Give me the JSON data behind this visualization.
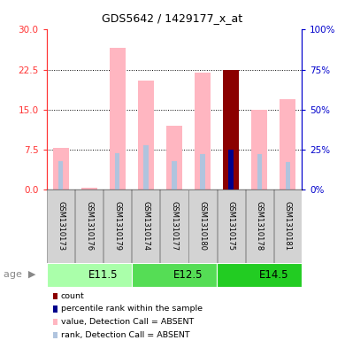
{
  "title": "GDS5642 / 1429177_x_at",
  "samples": [
    "GSM1310173",
    "GSM1310176",
    "GSM1310179",
    "GSM1310174",
    "GSM1310177",
    "GSM1310180",
    "GSM1310175",
    "GSM1310178",
    "GSM1310181"
  ],
  "value_absent": [
    7.8,
    0.4,
    26.5,
    20.5,
    12.0,
    22.0,
    0.0,
    15.0,
    17.0
  ],
  "rank_absent_pct": [
    18.0,
    0.0,
    23.0,
    28.0,
    18.0,
    22.0,
    0.0,
    22.0,
    17.0
  ],
  "count_val": [
    0.0,
    0.0,
    0.0,
    0.0,
    0.0,
    0.0,
    22.5,
    0.0,
    0.0
  ],
  "percentile_val_pct": [
    0.0,
    0.0,
    0.0,
    0.0,
    0.0,
    0.0,
    25.0,
    0.0,
    0.0
  ],
  "ylim_left": [
    0,
    30
  ],
  "ylim_right": [
    0,
    100
  ],
  "yticks_left": [
    0,
    7.5,
    15,
    22.5,
    30
  ],
  "yticks_right": [
    0,
    25,
    50,
    75,
    100
  ],
  "color_value_absent": "#FFB6C1",
  "color_rank_absent": "#B0C4DE",
  "color_count": "#8B0000",
  "color_percentile": "#00008B",
  "color_left_axis": "#FF3333",
  "color_right_axis": "#0000CC",
  "age_colors": [
    "#AAFFAA",
    "#55DD55",
    "#22CC22"
  ],
  "age_labels": [
    "E11.5",
    "E12.5",
    "E14.5"
  ],
  "age_starts": [
    0,
    3,
    6
  ],
  "age_ends": [
    3,
    6,
    9
  ],
  "legend_items": [
    {
      "color": "#8B0000",
      "label": "count"
    },
    {
      "color": "#00008B",
      "label": "percentile rank within the sample"
    },
    {
      "color": "#FFB6C1",
      "label": "value, Detection Call = ABSENT"
    },
    {
      "color": "#B0C4DE",
      "label": "rank, Detection Call = ABSENT"
    }
  ]
}
